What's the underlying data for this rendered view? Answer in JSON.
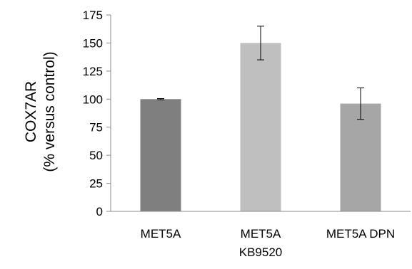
{
  "chart_data": {
    "type": "bar",
    "categories": [
      [
        "MET5A"
      ],
      [
        "MET5A",
        "KB9520"
      ],
      [
        "MET5A DPN"
      ]
    ],
    "values": [
      100,
      150,
      96
    ],
    "errors": [
      0.5,
      15,
      14
    ],
    "bar_colors": [
      "#7f7f7f",
      "#bfbfbf",
      "#a6a6a6"
    ],
    "ylabel": [
      "COX7AR",
      "(% versus control)"
    ],
    "ylim": [
      0,
      175
    ],
    "yticks": [
      0,
      25,
      50,
      75,
      100,
      125,
      150,
      175
    ],
    "grid": false,
    "legend": "none"
  }
}
